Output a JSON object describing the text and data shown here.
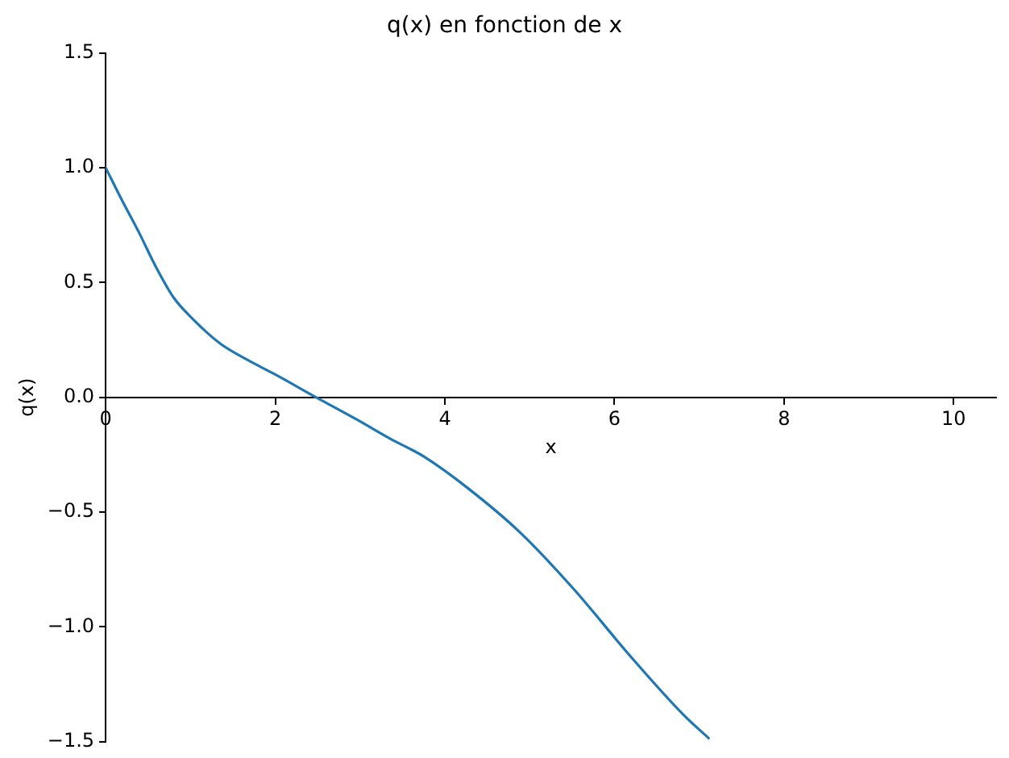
{
  "chart_data": {
    "type": "line",
    "title": "q(x) en fonction de x",
    "xlabel": "x",
    "ylabel": "q(x)",
    "x": [
      0,
      0.19,
      0.39,
      0.58,
      0.8,
      1.03,
      1.35,
      1.67,
      2.0,
      2.48,
      2.96,
      3.4,
      3.6,
      3.76,
      4.25,
      4.89,
      5.53,
      6.18,
      6.82,
      7.11
    ],
    "series": [
      {
        "color": "#1f77b4",
        "values": [
          1,
          0.86,
          0.72,
          0.577,
          0.435,
          0.34,
          0.234,
          0.163,
          0.099,
          0,
          -0.097,
          -0.19,
          -0.227,
          -0.26,
          -0.39,
          -0.59,
          -0.84,
          -1.125,
          -1.386,
          -1.485
        ]
      }
    ],
    "xlim": [
      0,
      10.5
    ],
    "xticks": [
      0,
      2,
      4,
      6,
      8,
      10
    ],
    "ylim": [
      -1.5,
      1.5
    ],
    "yticks": [
      {
        "value": -1.5,
        "label": "−1.5"
      },
      {
        "value": -1.0,
        "label": "−1.0"
      },
      {
        "value": -0.5,
        "label": "−0.5"
      },
      {
        "value": 0,
        "label": "0.0"
      },
      {
        "value": 0.5,
        "label": "0.5"
      },
      {
        "value": 1.0,
        "label": "1.0"
      },
      {
        "value": 1.5,
        "label": "1.5"
      }
    ],
    "grid": false,
    "legend": false,
    "marker": "none",
    "line_style": "solid"
  }
}
